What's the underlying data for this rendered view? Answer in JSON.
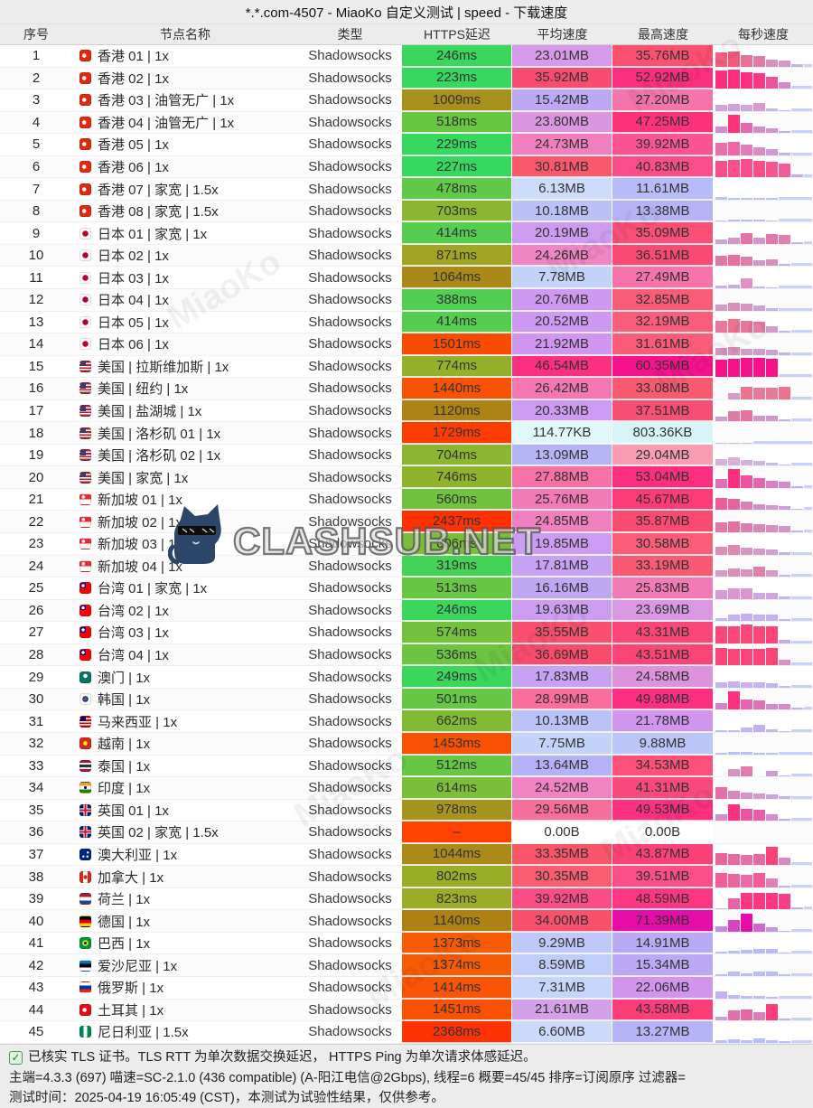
{
  "title": "*.*.com-4507 - MiaoKo 自定义测试 | speed - 下载速度",
  "columns": [
    "序号",
    "节点名称",
    "类型",
    "HTTPS延迟",
    "平均速度",
    "最高速度",
    "每秒速度"
  ],
  "watermark": {
    "brand": "CLASHSUB.NET",
    "diagonal": "MiaoKo"
  },
  "footer": {
    "line1": "已核实 TLS 证书。TLS RTT 为单次数据交换延迟， HTTPS Ping 为单次请求体感延迟。",
    "line2": "主端=4.3.3 (697) 喵速=SC-2.1.0 (436 compatible) (A-阳江电信@2Gbps), 线程=6 概要=45/45 排序=订阅原序 过滤器=",
    "line3": "测试时间：2025-04-19 16:05:49 (CST)，本测试为试验性结果，仅供参考。"
  },
  "rows": [
    {
      "n": 1,
      "flag": "hk",
      "name": "香港 01 | 1x",
      "type": "Shadowsocks",
      "lat": "246ms",
      "lat_c": "#3bd65c",
      "avg": "23.01MB",
      "avg_c": "#d79ae8",
      "max": "35.76MB",
      "max_c": "#f9516f",
      "spark": [
        0.7,
        0.75,
        0.55,
        0.5,
        0.35,
        0.3,
        0.1
      ]
    },
    {
      "n": 2,
      "flag": "hk",
      "name": "香港 02 | 1x",
      "type": "Shadowsocks",
      "lat": "223ms",
      "lat_c": "#36d860",
      "avg": "35.92MB",
      "avg_c": "#fa4b71",
      "max": "52.92MB",
      "max_c": "#fc2e7e",
      "spark": [
        0.9,
        0.95,
        0.8,
        0.75,
        0.6,
        0.3
      ]
    },
    {
      "n": 3,
      "flag": "hk",
      "name": "香港 03 | 油管无广 | 1x",
      "type": "Shadowsocks",
      "lat": "1009ms",
      "lat_c": "#a8901c",
      "avg": "15.42MB",
      "avg_c": "#bca9f4",
      "max": "27.20MB",
      "max_c": "#f574ac",
      "spark": [
        0.3,
        0.35,
        0.28,
        0.4,
        0.1,
        0.05
      ]
    },
    {
      "n": 4,
      "flag": "hk",
      "name": "香港 04 | 油管无广 | 1x",
      "type": "Shadowsocks",
      "lat": "518ms",
      "lat_c": "#68c643",
      "avg": "23.80MB",
      "avg_c": "#db96e1",
      "max": "47.25MB",
      "max_c": "#fc337b",
      "spark": [
        0.3,
        0.9,
        0.5,
        0.3,
        0.25,
        0.1
      ]
    },
    {
      "n": 5,
      "flag": "hk",
      "name": "香港 05 | 1x",
      "type": "Shadowsocks",
      "lat": "229ms",
      "lat_c": "#37d85f",
      "avg": "24.73MB",
      "avg_c": "#f07fbe",
      "max": "39.92MB",
      "max_c": "#fa5590",
      "spark": [
        0.6,
        0.65,
        0.5,
        0.4,
        0.3,
        0.12
      ]
    },
    {
      "n": 6,
      "flag": "hk",
      "name": "香港 06 | 1x",
      "type": "Shadowsocks",
      "lat": "227ms",
      "lat_c": "#37d85f",
      "avg": "30.81MB",
      "avg_c": "#f9586d",
      "max": "40.83MB",
      "max_c": "#fa4e8a",
      "spark": [
        0.8,
        0.85,
        0.9,
        0.8,
        0.75,
        0.7,
        0.15
      ]
    },
    {
      "n": 7,
      "flag": "hk",
      "name": "香港 07 | 家宽 | 1.5x",
      "type": "Shadowsocks",
      "lat": "478ms",
      "lat_c": "#60c947",
      "avg": "6.13MB",
      "avg_c": "#cedcfb",
      "max": "11.61MB",
      "max_c": "#b7bbf7",
      "spark": [
        0.12,
        0.1,
        0.08,
        0.1,
        0.08
      ]
    },
    {
      "n": 8,
      "flag": "hk",
      "name": "香港 08 | 家宽 | 1.5x",
      "type": "Shadowsocks",
      "lat": "703ms",
      "lat_c": "#8ab631",
      "avg": "10.18MB",
      "avg_c": "#bac1f8",
      "max": "13.38MB",
      "max_c": "#b5b3f6",
      "spark": [
        0.08,
        0.1,
        0.1,
        0.09,
        0.05
      ]
    },
    {
      "n": 9,
      "flag": "jp",
      "name": "日本 01 | 家宽 | 1x",
      "type": "Shadowsocks",
      "lat": "414ms",
      "lat_c": "#55cd4e",
      "avg": "20.19MB",
      "avg_c": "#cc9cf1",
      "max": "35.09MB",
      "max_c": "#f94f78",
      "spark": [
        0.2,
        0.3,
        0.55,
        0.3,
        0.5,
        0.45,
        0.1
      ]
    },
    {
      "n": 10,
      "flag": "jp",
      "name": "日本 02 | 1x",
      "type": "Shadowsocks",
      "lat": "871ms",
      "lat_c": "#a1a524",
      "avg": "24.26MB",
      "avg_c": "#ee85c5",
      "max": "36.51MB",
      "max_c": "#f94a73",
      "spark": [
        0.5,
        0.55,
        0.45,
        0.3,
        0.35,
        0.12
      ]
    },
    {
      "n": 11,
      "flag": "jp",
      "name": "日本 03 | 1x",
      "type": "Shadowsocks",
      "lat": "1064ms",
      "lat_c": "#aa8919",
      "avg": "7.78MB",
      "avg_c": "#c4d3fa",
      "max": "27.49MB",
      "max_c": "#f573ab",
      "spark": [
        0.15,
        0.2,
        0.5,
        0.1,
        0.05
      ]
    },
    {
      "n": 12,
      "flag": "jp",
      "name": "日本 04 | 1x",
      "type": "Shadowsocks",
      "lat": "388ms",
      "lat_c": "#50cf50",
      "avg": "20.76MB",
      "avg_c": "#ce9af1",
      "max": "32.85MB",
      "max_c": "#f85c77",
      "spark": [
        0.3,
        0.4,
        0.35,
        0.25,
        0.1
      ]
    },
    {
      "n": 13,
      "flag": "jp",
      "name": "日本 05 | 1x",
      "type": "Shadowsocks",
      "lat": "414ms",
      "lat_c": "#55cd4e",
      "avg": "20.52MB",
      "avg_c": "#cd9af1",
      "max": "32.19MB",
      "max_c": "#f85e7b",
      "spark": [
        0.6,
        0.65,
        0.6,
        0.55,
        0.3,
        0.08
      ]
    },
    {
      "n": 14,
      "flag": "jp",
      "name": "日本 06 | 1x",
      "type": "Shadowsocks",
      "lat": "1501ms",
      "lat_c": "#fa4b03",
      "avg": "21.92MB",
      "avg_c": "#d095ef",
      "max": "31.61MB",
      "max_c": "#f85c79",
      "spark": [
        0.35,
        0.4,
        0.3,
        0.3,
        0.25,
        0.1
      ]
    },
    {
      "n": 15,
      "flag": "us",
      "name": "美国 | 拉斯维加斯 | 1x",
      "type": "Shadowsocks",
      "lat": "774ms",
      "lat_c": "#94b12c",
      "avg": "46.54MB",
      "avg_c": "#fc2f80",
      "max": "60.35MB",
      "max_c": "#f5128b",
      "spark": [
        0.85,
        0.9,
        0.95,
        0.95,
        0.9
      ]
    },
    {
      "n": 16,
      "flag": "us",
      "name": "美国 | 纽约 | 1x",
      "type": "Shadowsocks",
      "lat": "1440ms",
      "lat_c": "#f85204",
      "avg": "26.42MB",
      "avg_c": "#f477b1",
      "max": "33.08MB",
      "max_c": "#f85a70",
      "spark": [
        0,
        0.3,
        0.6,
        0.55,
        0.55,
        0.6
      ]
    },
    {
      "n": 17,
      "flag": "us",
      "name": "美国 | 盐湖城 | 1x",
      "type": "Shadowsocks",
      "lat": "1120ms",
      "lat_c": "#ad8316",
      "avg": "20.33MB",
      "avg_c": "#cd9bf1",
      "max": "37.51MB",
      "max_c": "#f84f74",
      "spark": [
        0.25,
        0.5,
        0.55,
        0.3,
        0.28,
        0.1
      ]
    },
    {
      "n": 18,
      "flag": "us",
      "name": "美国 | 洛杉矶 01 | 1x",
      "type": "Shadowsocks",
      "lat": "1729ms",
      "lat_c": "#fc3d03",
      "avg": "114.77KB",
      "avg_c": "#e1f8fa",
      "max": "803.36KB",
      "max_c": "#d7f5f8",
      "spark": [
        0.06,
        0.05,
        0.04
      ]
    },
    {
      "n": 19,
      "flag": "us",
      "name": "美国 | 洛杉矶 02 | 1x",
      "type": "Shadowsocks",
      "lat": "704ms",
      "lat_c": "#8ab631",
      "avg": "13.09MB",
      "avg_c": "#b5b5f6",
      "max": "29.04MB",
      "max_c": "#f79cb1",
      "spark": [
        0.35,
        0.4,
        0.3,
        0.25,
        0.15,
        0.05
      ]
    },
    {
      "n": 20,
      "flag": "us",
      "name": "美国 | 家宽 | 1x",
      "type": "Shadowsocks",
      "lat": "746ms",
      "lat_c": "#90b32e",
      "avg": "27.88MB",
      "avg_c": "#f671a6",
      "max": "53.04MB",
      "max_c": "#fc2e7e",
      "spark": [
        0.45,
        0.95,
        0.6,
        0.5,
        0.35,
        0.3,
        0.1
      ]
    },
    {
      "n": 21,
      "flag": "sg",
      "name": "新加坡 01 | 1x",
      "type": "Shadowsocks",
      "lat": "560ms",
      "lat_c": "#70c23f",
      "avg": "25.76MB",
      "avg_c": "#f27ab6",
      "max": "45.67MB",
      "max_c": "#fc3b77",
      "spark": [
        0.6,
        0.55,
        0.4,
        0.3,
        0.25,
        0.2,
        0.05
      ]
    },
    {
      "n": 22,
      "flag": "sg",
      "name": "新加坡 02 | 1x",
      "type": "Shadowsocks",
      "lat": "2437ms",
      "lat_c": "#fe3104",
      "avg": "24.85MB",
      "avg_c": "#f07fbe",
      "max": "35.87MB",
      "max_c": "#f94b72",
      "spark": [
        0.5,
        0.55,
        0.45,
        0.4,
        0.35,
        0.3,
        0.08
      ]
    },
    {
      "n": 23,
      "flag": "sg",
      "name": "新加坡 03 | 1x",
      "type": "Shadowsocks",
      "lat": "606ms",
      "lat_c": "#79be3a",
      "avg": "19.85MB",
      "avg_c": "#cb9df2",
      "max": "30.58MB",
      "max_c": "#f95d78",
      "spark": [
        0.4,
        0.45,
        0.35,
        0.3,
        0.25,
        0.1
      ]
    },
    {
      "n": 24,
      "flag": "sg",
      "name": "新加坡 04 | 1x",
      "type": "Shadowsocks",
      "lat": "319ms",
      "lat_c": "#44d356",
      "avg": "17.81MB",
      "avg_c": "#c6a2f3",
      "max": "33.19MB",
      "max_c": "#f85a73",
      "spark": [
        0.3,
        0.4,
        0.35,
        0.5,
        0.3,
        0.08
      ]
    },
    {
      "n": 25,
      "flag": "tw",
      "name": "台湾 01 | 家宽 | 1x",
      "type": "Shadowsocks",
      "lat": "513ms",
      "lat_c": "#67c644",
      "avg": "16.16MB",
      "avg_c": "#c0a7f4",
      "max": "25.83MB",
      "max_c": "#f27ab6",
      "spark": [
        0.45,
        0.5,
        0.5,
        0.3,
        0.3,
        0.1
      ]
    },
    {
      "n": 26,
      "flag": "tw",
      "name": "台湾 02 | 1x",
      "type": "Shadowsocks",
      "lat": "246ms",
      "lat_c": "#3bd65c",
      "avg": "19.63MB",
      "avg_c": "#cb9ef2",
      "max": "23.69MB",
      "max_c": "#da97e2",
      "spark": [
        0.15,
        0.3,
        0.35,
        0.3,
        0.3,
        0.12
      ]
    },
    {
      "n": 27,
      "flag": "tw",
      "name": "台湾 03 | 1x",
      "type": "Shadowsocks",
      "lat": "574ms",
      "lat_c": "#73c13d",
      "avg": "35.55MB",
      "avg_c": "#f9506d",
      "max": "43.31MB",
      "max_c": "#fb4677",
      "spark": [
        0.85,
        0.85,
        0.9,
        0.85,
        0.85,
        0.15
      ]
    },
    {
      "n": 28,
      "flag": "tw",
      "name": "台湾 04 | 1x",
      "type": "Shadowsocks",
      "lat": "536ms",
      "lat_c": "#6cc441",
      "avg": "36.69MB",
      "avg_c": "#f94c6c",
      "max": "43.51MB",
      "max_c": "#fb4578",
      "spark": [
        0.85,
        0.8,
        0.8,
        0.8,
        0.85,
        0.3
      ]
    },
    {
      "n": 29,
      "flag": "mo",
      "name": "澳门 | 1x",
      "type": "Shadowsocks",
      "lat": "249ms",
      "lat_c": "#3bd65c",
      "avg": "17.83MB",
      "avg_c": "#c6a2f3",
      "max": "24.58MB",
      "max_c": "#dd93dc",
      "spark": [
        0.25,
        0.3,
        0.25,
        0.25,
        0.2,
        0.08
      ]
    },
    {
      "n": 30,
      "flag": "kr",
      "name": "韩国 | 1x",
      "type": "Shadowsocks",
      "lat": "501ms",
      "lat_c": "#65c745",
      "avg": "28.99MB",
      "avg_c": "#f86f9e",
      "max": "49.98MB",
      "max_c": "#fc2f81",
      "spark": [
        0.35,
        0.9,
        0.5,
        0.45,
        0.3,
        0.3,
        0.1
      ]
    },
    {
      "n": 31,
      "flag": "my",
      "name": "马来西亚 | 1x",
      "type": "Shadowsocks",
      "lat": "662ms",
      "lat_c": "#82ba35",
      "avg": "10.13MB",
      "avg_c": "#bbc2f8",
      "max": "21.78MB",
      "max_c": "#d096ef",
      "spark": [
        0.08,
        0.1,
        0.2,
        0.35,
        0.15,
        0.05
      ]
    },
    {
      "n": 32,
      "flag": "vn",
      "name": "越南 | 1x",
      "type": "Shadowsocks",
      "lat": "1453ms",
      "lat_c": "#f95104",
      "avg": "7.75MB",
      "avg_c": "#c4d3fa",
      "max": "9.88MB",
      "max_c": "#bcc5f8",
      "spark": [
        0.08,
        0.1,
        0.1,
        0.08,
        0.05
      ]
    },
    {
      "n": 33,
      "flag": "th",
      "name": "泰国 | 1x",
      "type": "Shadowsocks",
      "lat": "512ms",
      "lat_c": "#67c644",
      "avg": "13.64MB",
      "avg_c": "#b5b1f6",
      "max": "34.53MB",
      "max_c": "#f95179",
      "spark": [
        0,
        0.35,
        0.5,
        0,
        0.25,
        0.05
      ]
    },
    {
      "n": 34,
      "flag": "in",
      "name": "印度 | 1x",
      "type": "Shadowsocks",
      "lat": "614ms",
      "lat_c": "#7abe39",
      "avg": "24.52MB",
      "avg_c": "#ef83c3",
      "max": "41.31MB",
      "max_c": "#fa4a7d",
      "spark": [
        0.55,
        0.4,
        0.3,
        0.25,
        0.2,
        0.1
      ]
    },
    {
      "n": 35,
      "flag": "gb",
      "name": "英国 01 | 1x",
      "type": "Shadowsocks",
      "lat": "978ms",
      "lat_c": "#a7941e",
      "avg": "29.56MB",
      "avg_c": "#f86e9b",
      "max": "49.53MB",
      "max_c": "#fc307f",
      "spark": [
        0.3,
        0.8,
        0.6,
        0.55,
        0.3,
        0.1
      ]
    },
    {
      "n": 36,
      "flag": "gb",
      "name": "英国 02 | 家宽 | 1.5x",
      "type": "Shadowsocks",
      "lat": "–",
      "lat_c": "#ff4102",
      "avg": "0.00B",
      "avg_c": "#ffffff",
      "max": "0.00B",
      "max_c": "#ffffff",
      "spark": []
    },
    {
      "n": 37,
      "flag": "au",
      "name": "澳大利亚 | 1x",
      "type": "Shadowsocks",
      "lat": "1044ms",
      "lat_c": "#aa8b1a",
      "avg": "33.35MB",
      "avg_c": "#f85569",
      "max": "43.87MB",
      "max_c": "#fb4278",
      "spark": [
        0.6,
        0.55,
        0.5,
        0.55,
        0.9,
        0.35
      ]
    },
    {
      "n": 38,
      "flag": "ca",
      "name": "加拿大 | 1x",
      "type": "Shadowsocks",
      "lat": "802ms",
      "lat_c": "#98ae29",
      "avg": "30.35MB",
      "avg_c": "#f95d72",
      "max": "39.51MB",
      "max_c": "#fa4f88",
      "spark": [
        0.7,
        0.65,
        0.6,
        0.7,
        0.45,
        0.1
      ]
    },
    {
      "n": 39,
      "flag": "nl",
      "name": "荷兰 | 1x",
      "type": "Shadowsocks",
      "lat": "823ms",
      "lat_c": "#9bad28",
      "avg": "39.92MB",
      "avg_c": "#fa4d85",
      "max": "48.59MB",
      "max_c": "#fc3680",
      "spark": [
        0.05,
        0.55,
        0.8,
        0.8,
        0.8,
        0.75,
        0.1
      ]
    },
    {
      "n": 40,
      "flag": "de",
      "name": "德国 | 1x",
      "type": "Shadowsocks",
      "lat": "1140ms",
      "lat_c": "#ae8115",
      "avg": "34.00MB",
      "avg_c": "#f9506b",
      "max": "71.39MB",
      "max_c": "#e60caa",
      "spark": [
        0.25,
        0.55,
        0.9,
        0.4,
        0.2,
        0.05
      ]
    },
    {
      "n": 41,
      "flag": "br",
      "name": "巴西 | 1x",
      "type": "Shadowsocks",
      "lat": "1373ms",
      "lat_c": "#f75c05",
      "avg": "9.29MB",
      "avg_c": "#bec9f9",
      "max": "14.91MB",
      "max_c": "#b9aaf5",
      "spark": [
        0.1,
        0.15,
        0.2,
        0.25,
        0.25,
        0.05
      ]
    },
    {
      "n": 42,
      "flag": "ee",
      "name": "爱沙尼亚 | 1x",
      "type": "Shadowsocks",
      "lat": "1374ms",
      "lat_c": "#f75c05",
      "avg": "8.59MB",
      "avg_c": "#c0cdf9",
      "max": "15.34MB",
      "max_c": "#bba9f5",
      "spark": [
        0.1,
        0.2,
        0.15,
        0.2,
        0.2,
        0.1
      ]
    },
    {
      "n": 43,
      "flag": "ru",
      "name": "俄罗斯 | 1x",
      "type": "Shadowsocks",
      "lat": "1414ms",
      "lat_c": "#f85504",
      "avg": "7.31MB",
      "avg_c": "#c6d6fa",
      "max": "22.06MB",
      "max_c": "#d195ee",
      "spark": [
        0.35,
        0.15,
        0.1,
        0.1,
        0.05
      ]
    },
    {
      "n": 44,
      "flag": "tr",
      "name": "土耳其 | 1x",
      "type": "Shadowsocks",
      "lat": "1451ms",
      "lat_c": "#f95104",
      "avg": "21.61MB",
      "avg_c": "#d3a0ea",
      "max": "43.58MB",
      "max_c": "#fb3d79",
      "spark": [
        0.2,
        0.5,
        0.55,
        0.4,
        0.8,
        0.1
      ]
    },
    {
      "n": 45,
      "flag": "ng",
      "name": "尼日利亚 | 1.5x",
      "type": "Shadowsocks",
      "lat": "2368ms",
      "lat_c": "#fe3303",
      "avg": "6.60MB",
      "avg_c": "#cbdafb",
      "max": "13.27MB",
      "max_c": "#b5b4f6",
      "spark": [
        0.1,
        0.15,
        0.1,
        0.2,
        0.1,
        0.05
      ]
    }
  ]
}
